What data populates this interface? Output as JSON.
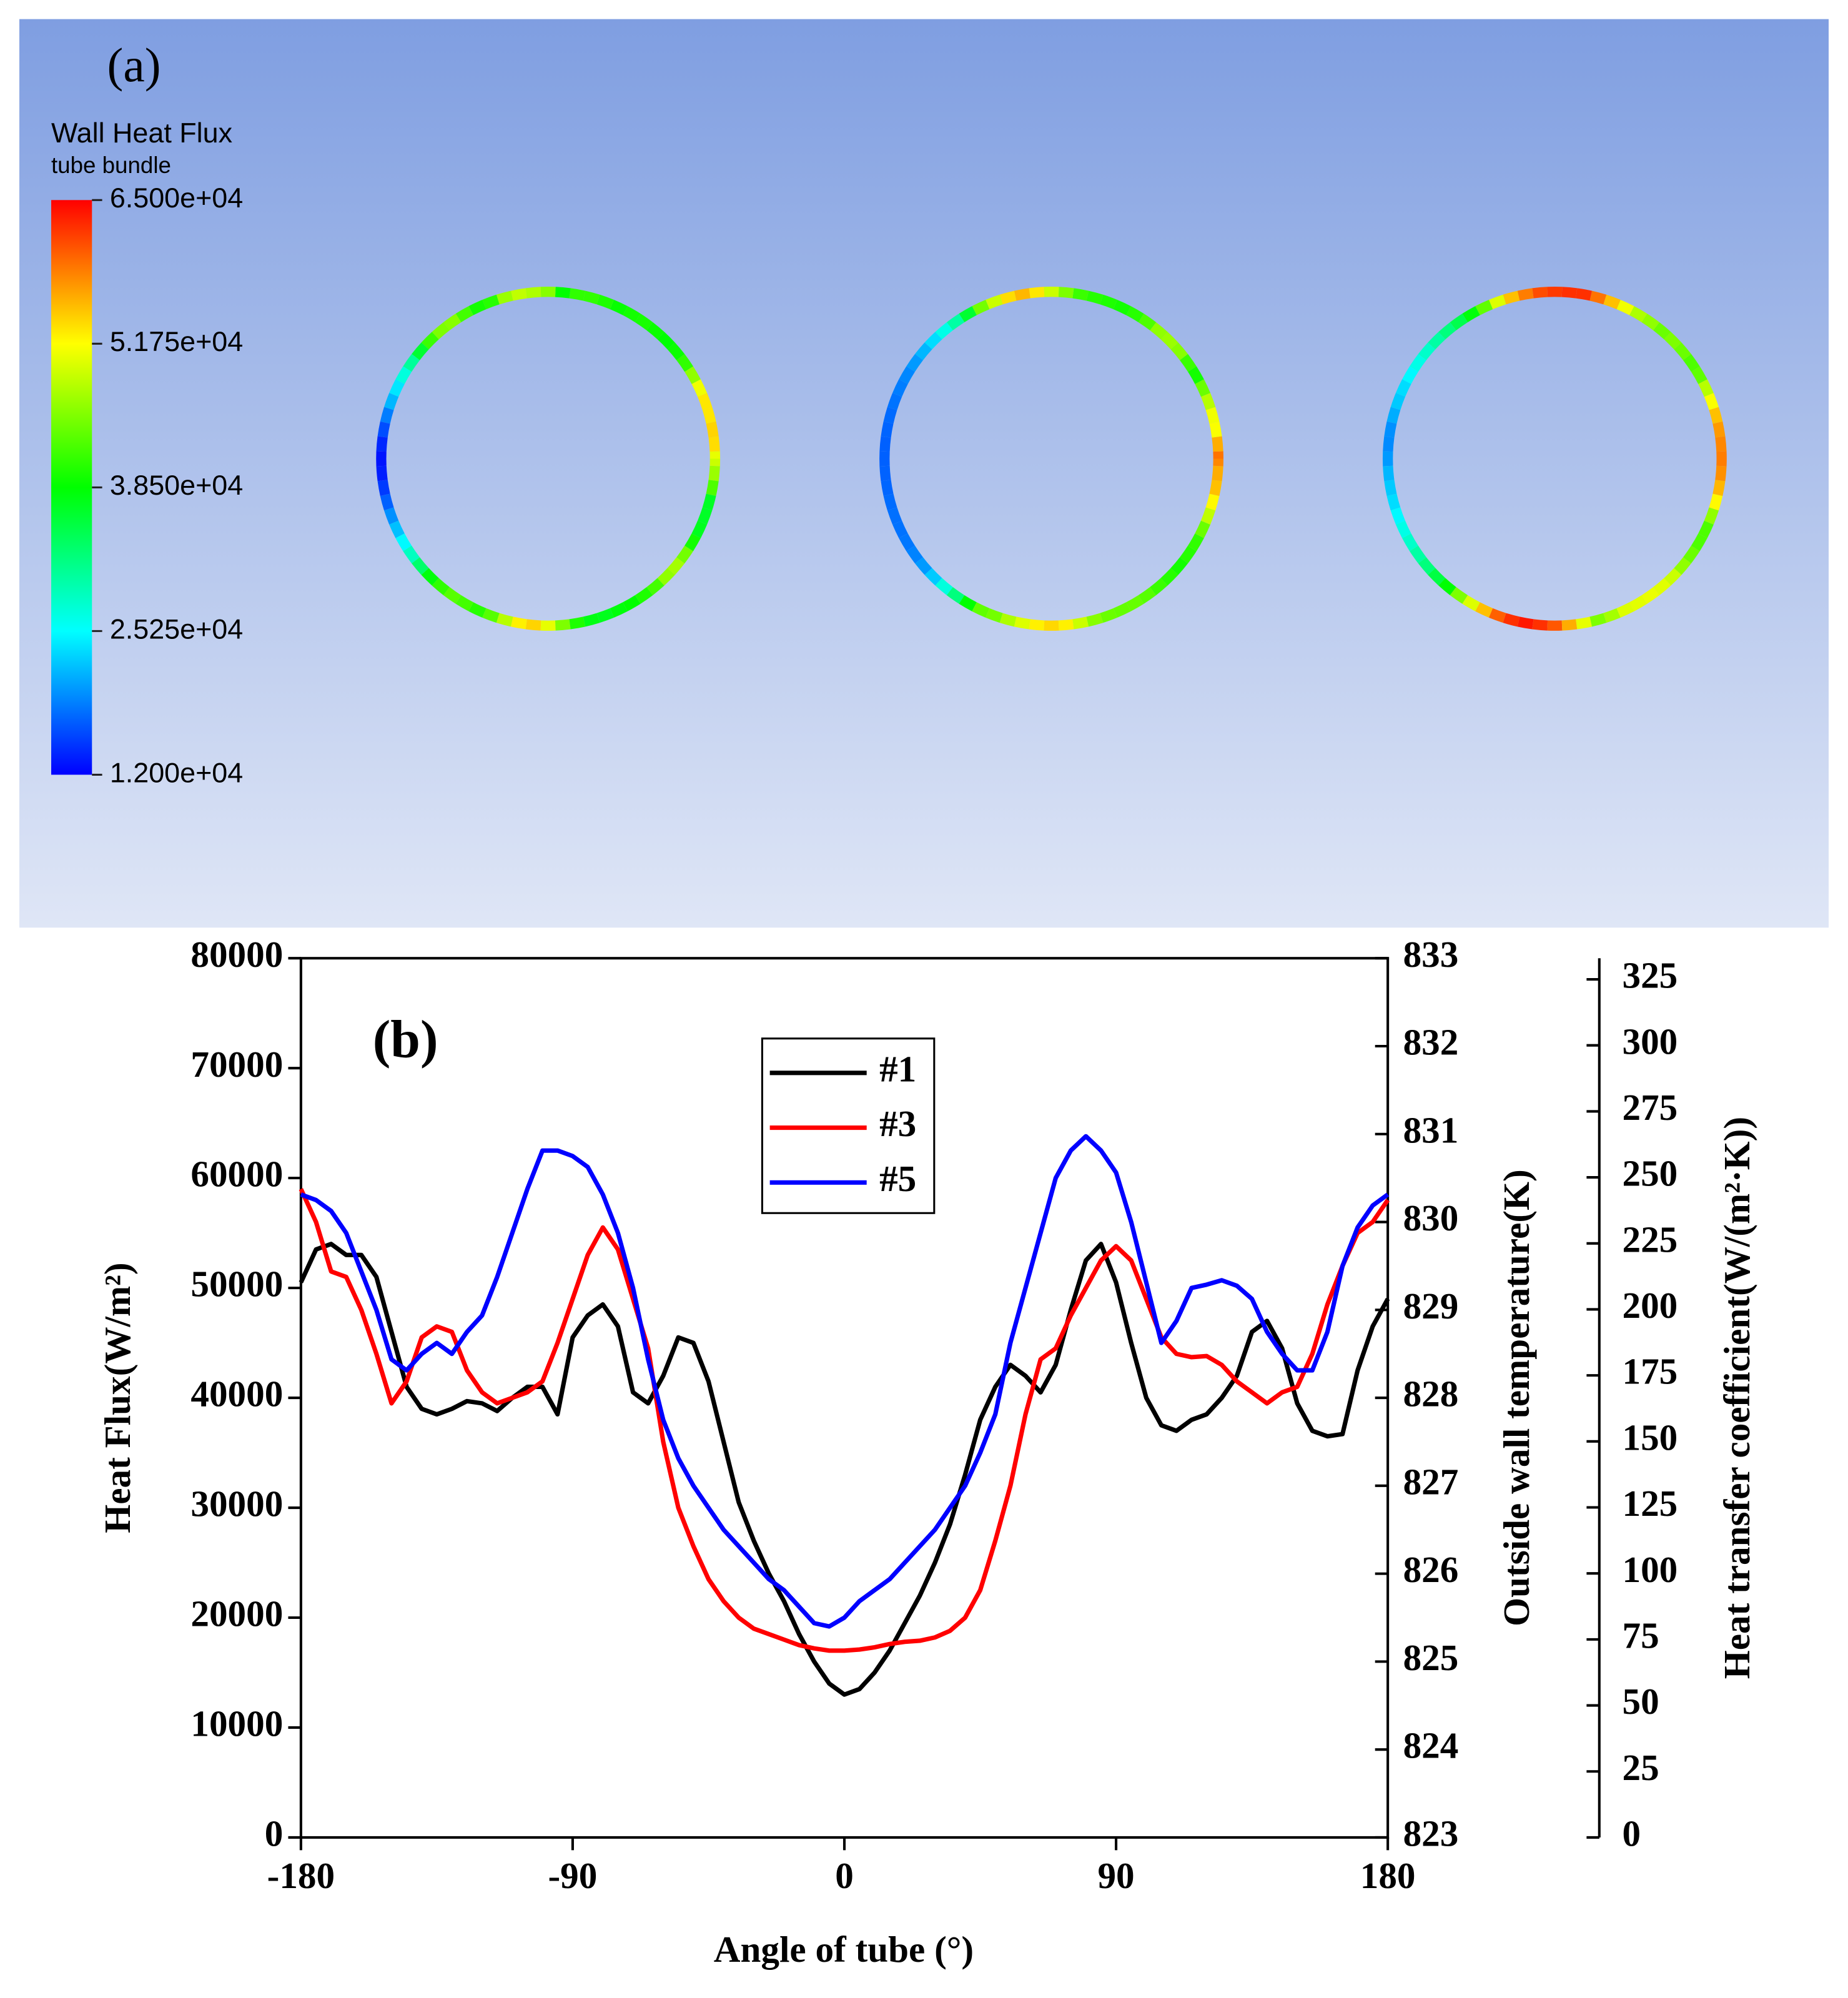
{
  "panel_a": {
    "label": "(a)",
    "title": "Wall Heat Flux",
    "subtitle": "tube bundle",
    "colorbar_ticks": [
      {
        "value": 12000,
        "label": "1.200e+04"
      },
      {
        "value": 25250,
        "label": "2.525e+04"
      },
      {
        "value": 38500,
        "label": "3.850e+04"
      },
      {
        "value": 51750,
        "label": "5.175e+04"
      },
      {
        "value": 65000,
        "label": "6.500e+04"
      }
    ]
  },
  "chart_data": {
    "type": "line",
    "label": "(b)",
    "xlabel": "Angle of tube (°)",
    "ylabel": "Heat Flux(W/m²)",
    "y2label": "Outside wall temperature(K)",
    "y3label": "Heat transfer coefficient(W/(m²·K))",
    "x": [
      -180,
      -175,
      -170,
      -165,
      -160,
      -155,
      -150,
      -145,
      -140,
      -135,
      -130,
      -125,
      -120,
      -115,
      -110,
      -105,
      -100,
      -95,
      -90,
      -85,
      -80,
      -75,
      -70,
      -65,
      -60,
      -55,
      -50,
      -45,
      -40,
      -35,
      -30,
      -25,
      -20,
      -15,
      -10,
      -5,
      0,
      5,
      10,
      15,
      20,
      25,
      30,
      35,
      40,
      45,
      50,
      55,
      60,
      65,
      70,
      75,
      80,
      85,
      90,
      95,
      100,
      105,
      110,
      115,
      120,
      125,
      130,
      135,
      140,
      145,
      150,
      155,
      160,
      165,
      170,
      175,
      180
    ],
    "series": [
      {
        "name": "#1",
        "color": "#000000",
        "values": [
          50500,
          53500,
          54000,
          53000,
          53000,
          51000,
          46000,
          41000,
          39000,
          38500,
          39000,
          39700,
          39500,
          38800,
          40000,
          41000,
          41000,
          38500,
          45500,
          47500,
          48500,
          46500,
          40500,
          39500,
          42000,
          45500,
          45000,
          41500,
          36000,
          30500,
          27000,
          24000,
          21500,
          18500,
          16000,
          14000,
          13000,
          13500,
          15000,
          17000,
          19500,
          22000,
          25000,
          28500,
          33000,
          38000,
          41000,
          43000,
          42000,
          40500,
          43000,
          48000,
          52500,
          54000,
          50500,
          45000,
          40000,
          37500,
          37000,
          38000,
          38500,
          40000,
          42000,
          46000,
          47000,
          44500,
          39500,
          37000,
          36500,
          36700,
          42500,
          46500,
          49000
        ]
      },
      {
        "name": "#3",
        "color": "#ff0000",
        "values": [
          59000,
          56000,
          51500,
          51000,
          48000,
          44000,
          39500,
          41500,
          45500,
          46500,
          46000,
          42500,
          40500,
          39500,
          40000,
          40500,
          41500,
          45000,
          49000,
          53000,
          55500,
          53500,
          49000,
          44500,
          36000,
          30000,
          26500,
          23500,
          21500,
          20000,
          19000,
          18500,
          18000,
          17500,
          17200,
          17000,
          17000,
          17100,
          17300,
          17600,
          17800,
          17900,
          18200,
          18800,
          20000,
          22500,
          27000,
          32000,
          38500,
          43500,
          44500,
          47500,
          50000,
          52500,
          53800,
          52500,
          49000,
          45500,
          44000,
          43700,
          43800,
          43000,
          41500,
          40500,
          39500,
          40500,
          41000,
          44000,
          48500,
          52000,
          55000,
          56000,
          58000
        ]
      },
      {
        "name": "#5",
        "color": "#0000ff",
        "values": [
          58500,
          58000,
          57000,
          55000,
          51500,
          48000,
          43500,
          42500,
          44000,
          45000,
          44000,
          46000,
          47500,
          51000,
          55000,
          59000,
          62500,
          62500,
          62000,
          61000,
          58500,
          55000,
          50000,
          43500,
          38000,
          34500,
          32000,
          30000,
          28000,
          26500,
          25000,
          23500,
          22500,
          21000,
          19500,
          19200,
          20000,
          21500,
          22500,
          23500,
          25000,
          26500,
          28000,
          30000,
          32000,
          35000,
          38500,
          45000,
          50000,
          55000,
          60000,
          62500,
          63800,
          62500,
          60500,
          56000,
          50500,
          45000,
          47000,
          50000,
          50300,
          50700,
          50200,
          49000,
          46000,
          44000,
          42500,
          42500,
          46000,
          52000,
          55500,
          57500,
          58500
        ]
      }
    ],
    "xlim": [
      -180,
      180
    ],
    "xticks": [
      -180,
      -90,
      0,
      90,
      180
    ],
    "ylim": [
      0,
      80000
    ],
    "yticks": [
      0,
      10000,
      20000,
      30000,
      40000,
      50000,
      60000,
      70000,
      80000
    ],
    "y2lim": [
      823,
      833
    ],
    "y2ticks": [
      823,
      824,
      825,
      826,
      827,
      828,
      829,
      830,
      831,
      832,
      833
    ],
    "y3lim": [
      0,
      333
    ],
    "y3ticks": [
      0,
      25,
      50,
      75,
      100,
      125,
      150,
      175,
      200,
      225,
      250,
      275,
      300,
      325
    ]
  }
}
